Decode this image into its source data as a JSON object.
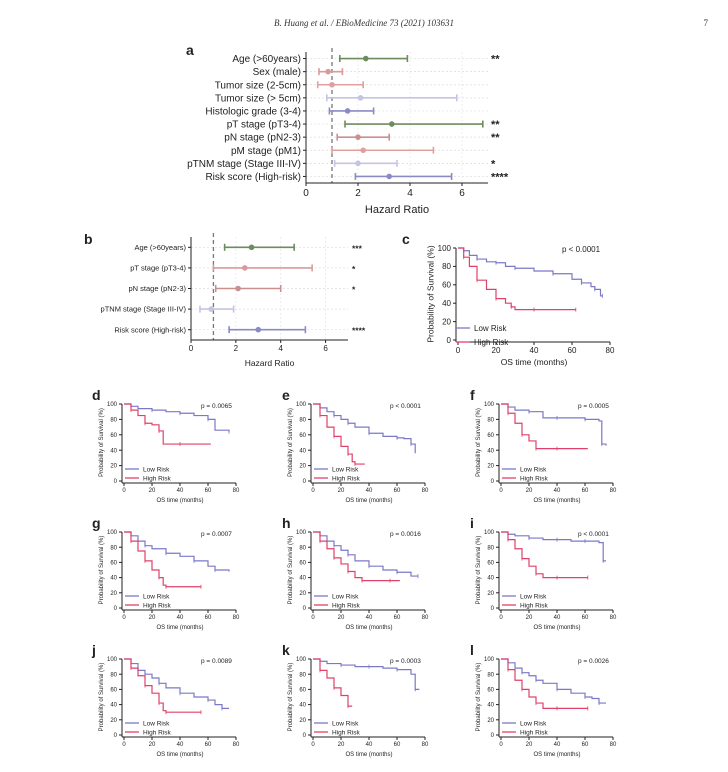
{
  "header": {
    "journal": "B. Huang et al. / EBioMedicine 73 (2021) 103631",
    "page_number": "7"
  },
  "chart_data": [
    {
      "id": "a",
      "type": "forest",
      "panel_label": "a",
      "xlabel": "Hazard Ratio",
      "xlim": [
        0,
        7
      ],
      "xticks": [
        0,
        2,
        4,
        6
      ],
      "ref_line": 1,
      "rows": [
        {
          "label": "Age (>60years)",
          "hr": 2.3,
          "lo": 1.3,
          "hi": 3.9,
          "sig": "**",
          "color": "#6e8b5e"
        },
        {
          "label": "Sex (male)",
          "hr": 0.85,
          "lo": 0.5,
          "hi": 1.4,
          "sig": "",
          "color": "#d99a9a"
        },
        {
          "label": "Tumor size (2-5cm)",
          "hr": 1.0,
          "lo": 0.45,
          "hi": 2.2,
          "sig": "",
          "color": "#e0a0a0"
        },
        {
          "label": "Tumor size (> 5cm)",
          "hr": 2.1,
          "lo": 0.8,
          "hi": 5.8,
          "sig": "",
          "color": "#c4c4e4"
        },
        {
          "label": "Histologic grade (3-4)",
          "hr": 1.6,
          "lo": 0.9,
          "hi": 2.6,
          "sig": "",
          "color": "#8a8ac4"
        },
        {
          "label": "pT stage (pT3-4)",
          "hr": 3.3,
          "lo": 1.5,
          "hi": 6.8,
          "sig": "**",
          "color": "#6e8b5e"
        },
        {
          "label": "pN stage (pN2-3)",
          "hr": 2.0,
          "lo": 1.2,
          "hi": 3.2,
          "sig": "**",
          "color": "#c99090"
        },
        {
          "label": "pM stage (pM1)",
          "hr": 2.2,
          "lo": 1.0,
          "hi": 4.9,
          "sig": "",
          "color": "#e0a0a0"
        },
        {
          "label": "pTNM stage (Stage III-IV)",
          "hr": 2.0,
          "lo": 1.1,
          "hi": 3.5,
          "sig": "*",
          "color": "#c4c4e4"
        },
        {
          "label": "Risk score (High-risk)",
          "hr": 3.2,
          "lo": 1.9,
          "hi": 5.6,
          "sig": "****",
          "color": "#8a8ac4"
        }
      ]
    },
    {
      "id": "b",
      "type": "forest",
      "panel_label": "b",
      "xlabel": "Hazard Ratio",
      "xlim": [
        0,
        7
      ],
      "xticks": [
        0,
        2,
        4,
        6
      ],
      "ref_line": 1,
      "rows": [
        {
          "label": "Age (>60years)",
          "hr": 2.7,
          "lo": 1.5,
          "hi": 4.6,
          "sig": "***",
          "color": "#6e8b5e"
        },
        {
          "label": "pT stage (pT3-4)",
          "hr": 2.4,
          "lo": 1.0,
          "hi": 5.4,
          "sig": "*",
          "color": "#d99a9a"
        },
        {
          "label": "pN stage (pN2-3)",
          "hr": 2.1,
          "lo": 1.1,
          "hi": 4.0,
          "sig": "*",
          "color": "#c99090"
        },
        {
          "label": "pTNM stage (Stage III-IV)",
          "hr": 0.9,
          "lo": 0.4,
          "hi": 1.9,
          "sig": "",
          "color": "#c4c4e4"
        },
        {
          "label": "Risk score (High-risk)",
          "hr": 3.0,
          "lo": 1.7,
          "hi": 5.1,
          "sig": "****",
          "color": "#8a8ac4"
        }
      ]
    },
    {
      "id": "c",
      "type": "line",
      "panel_label": "c",
      "xlabel": "OS time (months)",
      "ylabel": "Probability of Survival (%)",
      "xlim": [
        0,
        80
      ],
      "ylim": [
        0,
        100
      ],
      "xticks": [
        0,
        20,
        40,
        60,
        80
      ],
      "yticks": [
        0,
        20,
        40,
        60,
        80,
        100
      ],
      "pvalue": "p < 0.0001",
      "series": [
        {
          "name": "Low Risk",
          "color": "#7b78c8",
          "x": [
            0,
            3,
            6,
            10,
            15,
            20,
            25,
            30,
            40,
            50,
            60,
            65,
            70,
            72,
            75,
            76
          ],
          "y": [
            100,
            97,
            92,
            88,
            85,
            84,
            80,
            78,
            75,
            72,
            66,
            62,
            58,
            55,
            48,
            48
          ]
        },
        {
          "name": "High Risk",
          "color": "#e0416a",
          "x": [
            0,
            3,
            6,
            10,
            15,
            20,
            25,
            28,
            30,
            40,
            50,
            62
          ],
          "y": [
            100,
            90,
            80,
            65,
            55,
            45,
            40,
            36,
            33,
            33,
            33,
            33
          ]
        }
      ]
    },
    {
      "id": "d",
      "type": "line",
      "panel_label": "d",
      "xlabel": "OS time (months)",
      "ylabel": "Probability of Survival (%)",
      "xlim": [
        0,
        80
      ],
      "ylim": [
        0,
        100
      ],
      "xticks": [
        0,
        20,
        40,
        60,
        80
      ],
      "yticks": [
        0,
        20,
        40,
        60,
        80,
        100
      ],
      "pvalue": "p = 0.0065",
      "series": [
        {
          "name": "Low Risk",
          "color": "#7b78c8",
          "x": [
            0,
            5,
            10,
            20,
            30,
            40,
            50,
            60,
            65,
            75
          ],
          "y": [
            100,
            97,
            94,
            92,
            90,
            88,
            85,
            80,
            66,
            64
          ]
        },
        {
          "name": "High Risk",
          "color": "#e0416a",
          "x": [
            0,
            5,
            10,
            15,
            20,
            25,
            28,
            40,
            62
          ],
          "y": [
            100,
            92,
            85,
            75,
            73,
            65,
            48,
            48,
            48
          ]
        }
      ]
    },
    {
      "id": "e",
      "type": "line",
      "panel_label": "e",
      "xlabel": "OS time (months)",
      "ylabel": "Probability of Survival (%)",
      "xlim": [
        0,
        80
      ],
      "ylim": [
        0,
        100
      ],
      "xticks": [
        0,
        20,
        40,
        60,
        80
      ],
      "yticks": [
        0,
        20,
        40,
        60,
        80,
        100
      ],
      "pvalue": "p < 0.0001",
      "series": [
        {
          "name": "Low Risk",
          "color": "#7b78c8",
          "x": [
            0,
            5,
            10,
            15,
            20,
            25,
            30,
            40,
            50,
            60,
            65,
            70,
            73
          ],
          "y": [
            100,
            95,
            90,
            85,
            80,
            75,
            70,
            62,
            58,
            56,
            55,
            48,
            36
          ]
        },
        {
          "name": "High Risk",
          "color": "#e0416a",
          "x": [
            0,
            5,
            10,
            15,
            20,
            25,
            28,
            30,
            37
          ],
          "y": [
            100,
            85,
            70,
            58,
            45,
            35,
            25,
            22,
            22
          ]
        }
      ]
    },
    {
      "id": "f",
      "type": "line",
      "panel_label": "f",
      "xlabel": "OS time (months)",
      "ylabel": "Probability of Survival (%)",
      "xlim": [
        0,
        80
      ],
      "ylim": [
        0,
        100
      ],
      "xticks": [
        0,
        20,
        40,
        60,
        80
      ],
      "yticks": [
        0,
        20,
        40,
        60,
        80,
        100
      ],
      "pvalue": "p = 0.0005",
      "series": [
        {
          "name": "Low Risk",
          "color": "#7b78c8",
          "x": [
            0,
            5,
            10,
            20,
            30,
            40,
            50,
            60,
            70,
            72,
            75
          ],
          "y": [
            100,
            96,
            92,
            90,
            82,
            82,
            82,
            80,
            78,
            48,
            46
          ]
        },
        {
          "name": "High Risk",
          "color": "#e0416a",
          "x": [
            0,
            5,
            10,
            15,
            20,
            25,
            30,
            40,
            62
          ],
          "y": [
            100,
            88,
            75,
            60,
            52,
            42,
            42,
            42,
            42
          ]
        }
      ]
    },
    {
      "id": "g",
      "type": "line",
      "panel_label": "g",
      "xlabel": "OS time (months)",
      "ylabel": "Probability of Survival (%)",
      "xlim": [
        0,
        80
      ],
      "ylim": [
        0,
        100
      ],
      "xticks": [
        0,
        20,
        40,
        60,
        80
      ],
      "yticks": [
        0,
        20,
        40,
        60,
        80,
        100
      ],
      "pvalue": "p = 0.0007",
      "series": [
        {
          "name": "Low Risk",
          "color": "#7b78c8",
          "x": [
            0,
            5,
            10,
            15,
            20,
            30,
            40,
            50,
            60,
            65,
            75
          ],
          "y": [
            100,
            95,
            88,
            82,
            78,
            72,
            68,
            62,
            55,
            50,
            48
          ]
        },
        {
          "name": "High Risk",
          "color": "#e0416a",
          "x": [
            0,
            5,
            10,
            15,
            20,
            25,
            28,
            30,
            40,
            55
          ],
          "y": [
            100,
            88,
            75,
            62,
            50,
            40,
            30,
            28,
            28,
            28
          ]
        }
      ]
    },
    {
      "id": "h",
      "type": "line",
      "panel_label": "h",
      "xlabel": "OS time (months)",
      "ylabel": "Probability of Survival (%)",
      "xlim": [
        0,
        80
      ],
      "ylim": [
        0,
        100
      ],
      "xticks": [
        0,
        20,
        40,
        60,
        80
      ],
      "yticks": [
        0,
        20,
        40,
        60,
        80,
        100
      ],
      "pvalue": "p = 0.0016",
      "series": [
        {
          "name": "Low Risk",
          "color": "#7b78c8",
          "x": [
            0,
            5,
            10,
            15,
            20,
            25,
            30,
            40,
            50,
            60,
            70,
            75
          ],
          "y": [
            100,
            95,
            88,
            82,
            76,
            70,
            62,
            55,
            50,
            47,
            42,
            42
          ]
        },
        {
          "name": "High Risk",
          "color": "#e0416a",
          "x": [
            0,
            5,
            10,
            15,
            20,
            25,
            30,
            35,
            45,
            55,
            62
          ],
          "y": [
            100,
            88,
            78,
            66,
            58,
            48,
            40,
            36,
            36,
            36,
            36
          ]
        }
      ]
    },
    {
      "id": "i",
      "type": "line",
      "panel_label": "i",
      "xlabel": "OS time (months)",
      "ylabel": "Probability of Survival (%)",
      "xlim": [
        0,
        80
      ],
      "ylim": [
        0,
        100
      ],
      "xticks": [
        0,
        20,
        40,
        60,
        80
      ],
      "yticks": [
        0,
        20,
        40,
        60,
        80,
        100
      ],
      "pvalue": "p < 0.0001",
      "series": [
        {
          "name": "Low Risk",
          "color": "#7b78c8",
          "x": [
            0,
            5,
            10,
            20,
            30,
            40,
            50,
            60,
            70,
            73,
            75
          ],
          "y": [
            100,
            97,
            95,
            92,
            90,
            90,
            88,
            88,
            86,
            62,
            62
          ]
        },
        {
          "name": "High Risk",
          "color": "#e0416a",
          "x": [
            0,
            5,
            10,
            15,
            20,
            25,
            30,
            40,
            50,
            62
          ],
          "y": [
            100,
            90,
            78,
            65,
            55,
            45,
            40,
            40,
            40,
            40
          ]
        }
      ]
    },
    {
      "id": "j",
      "type": "line",
      "panel_label": "j",
      "xlabel": "OS time (months)",
      "ylabel": "Probability of Survival (%)",
      "xlim": [
        0,
        80
      ],
      "ylim": [
        0,
        100
      ],
      "xticks": [
        0,
        20,
        40,
        60,
        80
      ],
      "yticks": [
        0,
        20,
        40,
        60,
        80,
        100
      ],
      "pvalue": "p = 0.0089",
      "series": [
        {
          "name": "Low Risk",
          "color": "#7b78c8",
          "x": [
            0,
            5,
            10,
            15,
            20,
            25,
            30,
            40,
            50,
            60,
            65,
            70,
            75
          ],
          "y": [
            100,
            94,
            85,
            80,
            75,
            68,
            62,
            55,
            50,
            46,
            40,
            35,
            35
          ]
        },
        {
          "name": "High Risk",
          "color": "#e0416a",
          "x": [
            0,
            5,
            10,
            15,
            20,
            25,
            28,
            30,
            40,
            55
          ],
          "y": [
            100,
            88,
            78,
            65,
            55,
            42,
            32,
            30,
            30,
            30
          ]
        }
      ]
    },
    {
      "id": "k",
      "type": "line",
      "panel_label": "k",
      "xlabel": "OS time (months)",
      "ylabel": "Probability of Survival (%)",
      "xlim": [
        0,
        80
      ],
      "ylim": [
        0,
        100
      ],
      "xticks": [
        0,
        20,
        40,
        60,
        80
      ],
      "yticks": [
        0,
        20,
        40,
        60,
        80,
        100
      ],
      "pvalue": "p = 0.0003",
      "series": [
        {
          "name": "Low Risk",
          "color": "#7b78c8",
          "x": [
            0,
            5,
            10,
            20,
            30,
            40,
            50,
            60,
            70,
            73,
            76
          ],
          "y": [
            100,
            97,
            94,
            92,
            90,
            90,
            88,
            86,
            80,
            60,
            60
          ]
        },
        {
          "name": "High Risk",
          "color": "#e0416a",
          "x": [
            0,
            5,
            10,
            15,
            20,
            25,
            28
          ],
          "y": [
            100,
            85,
            75,
            62,
            52,
            38,
            38
          ]
        }
      ]
    },
    {
      "id": "l",
      "type": "line",
      "panel_label": "l",
      "xlabel": "OS time (months)",
      "ylabel": "Probability of Survival (%)",
      "xlim": [
        0,
        80
      ],
      "ylim": [
        0,
        100
      ],
      "xticks": [
        0,
        20,
        40,
        60,
        80
      ],
      "yticks": [
        0,
        20,
        40,
        60,
        80,
        100
      ],
      "pvalue": "p = 0.0026",
      "series": [
        {
          "name": "Low Risk",
          "color": "#7b78c8",
          "x": [
            0,
            5,
            10,
            15,
            20,
            25,
            30,
            40,
            50,
            60,
            65,
            70,
            75
          ],
          "y": [
            100,
            95,
            88,
            82,
            78,
            72,
            68,
            60,
            55,
            50,
            48,
            42,
            42
          ]
        },
        {
          "name": "High Risk",
          "color": "#e0416a",
          "x": [
            0,
            5,
            10,
            15,
            20,
            25,
            30,
            40,
            50,
            62
          ],
          "y": [
            100,
            86,
            72,
            60,
            50,
            42,
            35,
            35,
            35,
            35
          ]
        }
      ]
    }
  ]
}
